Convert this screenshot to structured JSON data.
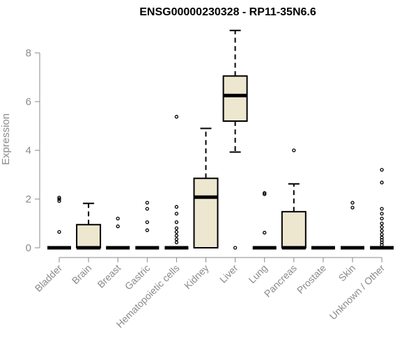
{
  "chart_data": {
    "type": "box",
    "title": "ENSG00000230328 - RP11-35N6.6",
    "xlabel": "",
    "ylabel": "Expression",
    "ylim": [
      0,
      9
    ],
    "yticks": [
      0,
      2,
      4,
      6,
      8
    ],
    "grid": false,
    "box_fill": "#EDE7D0",
    "categories": [
      "Bladder",
      "Brain",
      "Breast",
      "Gastric",
      "Hematopoietic cells",
      "Kidney",
      "Liver",
      "Lung",
      "Pancreas",
      "Prostate",
      "Skin",
      "Unknown / Other"
    ],
    "boxes": [
      {
        "q1": 0,
        "median": 0,
        "q3": 0,
        "whisker_low": 0,
        "whisker_high": 0,
        "outliers": [
          0.65,
          1.92,
          2.0,
          2.06
        ]
      },
      {
        "q1": 0,
        "median": 0,
        "q3": 0.95,
        "whisker_low": 0,
        "whisker_high": 1.82,
        "outliers": []
      },
      {
        "q1": 0,
        "median": 0,
        "q3": 0,
        "whisker_low": 0,
        "whisker_high": 0,
        "outliers": [
          0.88,
          1.2
        ]
      },
      {
        "q1": 0,
        "median": 0,
        "q3": 0,
        "whisker_low": 0,
        "whisker_high": 0,
        "outliers": [
          0.72,
          1.05,
          1.6,
          1.85
        ]
      },
      {
        "q1": 0,
        "median": 0,
        "q3": 0,
        "whisker_low": 0,
        "whisker_high": 0,
        "outliers": [
          0.22,
          0.35,
          0.5,
          0.65,
          0.8,
          1.05,
          1.4,
          1.68,
          5.38
        ]
      },
      {
        "q1": 0,
        "median": 2.08,
        "q3": 2.85,
        "whisker_low": 0,
        "whisker_high": 4.9,
        "outliers": []
      },
      {
        "q1": 5.2,
        "median": 6.25,
        "q3": 7.05,
        "whisker_low": 3.93,
        "whisker_high": 8.92,
        "outliers": [
          0
        ]
      },
      {
        "q1": 0,
        "median": 0,
        "q3": 0,
        "whisker_low": 0,
        "whisker_high": 0,
        "outliers": [
          0.62,
          2.2,
          2.25
        ]
      },
      {
        "q1": 0,
        "median": 0,
        "q3": 1.48,
        "whisker_low": 0,
        "whisker_high": 2.62,
        "outliers": [
          4.0
        ]
      },
      {
        "q1": 0,
        "median": 0,
        "q3": 0,
        "whisker_low": 0,
        "whisker_high": 0,
        "outliers": []
      },
      {
        "q1": 0,
        "median": 0,
        "q3": 0,
        "whisker_low": 0,
        "whisker_high": 0,
        "outliers": [
          1.65,
          1.85
        ]
      },
      {
        "q1": 0,
        "median": 0,
        "q3": 0,
        "whisker_low": 0,
        "whisker_high": 0,
        "outliers": [
          0.12,
          0.22,
          0.32,
          0.42,
          0.55,
          0.7,
          0.85,
          1.0,
          1.2,
          1.4,
          1.6,
          2.68,
          3.2
        ]
      }
    ]
  }
}
